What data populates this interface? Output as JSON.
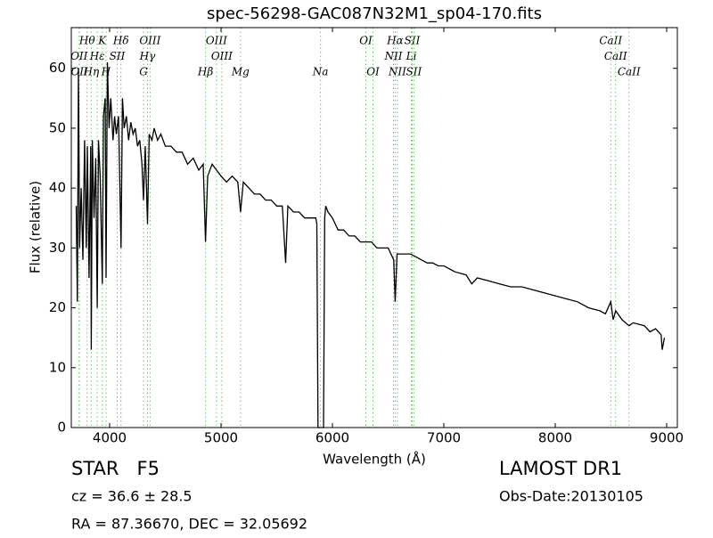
{
  "chart_data": {
    "type": "line",
    "title": "spec-56298-GAC087N32M1_sp04-170.fits",
    "x_label": "Wavelength (Å)",
    "y_label": "Flux (relative)",
    "color": "#000000",
    "line_color": "#66cc66",
    "xlim": [
      3656,
      9096
    ],
    "ylim": [
      0,
      66.8
    ],
    "xticks": [
      4000,
      5000,
      6000,
      7000,
      8000,
      9000
    ],
    "yticks": [
      0,
      10,
      20,
      30,
      40,
      50,
      60
    ],
    "x": [
      3700,
      3710,
      3720,
      3730,
      3745,
      3760,
      3775,
      3790,
      3800,
      3815,
      3830,
      3835,
      3845,
      3860,
      3875,
      3889,
      3900,
      3915,
      3934,
      3945,
      3960,
      3968,
      3980,
      3995,
      4010,
      4030,
      4045,
      4060,
      4080,
      4102,
      4115,
      4130,
      4150,
      4170,
      4190,
      4210,
      4230,
      4250,
      4270,
      4290,
      4304,
      4320,
      4340,
      4355,
      4380,
      4400,
      4430,
      4460,
      4500,
      4550,
      4600,
      4650,
      4700,
      4750,
      4800,
      4840,
      4861,
      4880,
      4920,
      4960,
      5000,
      5050,
      5100,
      5150,
      5175,
      5200,
      5250,
      5300,
      5350,
      5400,
      5450,
      5500,
      5550,
      5580,
      5600,
      5650,
      5700,
      5750,
      5800,
      5850,
      5860,
      5870,
      5920,
      5930,
      5940,
      5960,
      6000,
      6050,
      6100,
      6150,
      6200,
      6250,
      6300,
      6350,
      6400,
      6450,
      6500,
      6550,
      6563,
      6580,
      6650,
      6700,
      6750,
      6800,
      6850,
      6900,
      6950,
      7000,
      7100,
      7200,
      7250,
      7300,
      7400,
      7500,
      7600,
      7700,
      7800,
      7900,
      8000,
      8100,
      8200,
      8300,
      8400,
      8450,
      8498,
      8520,
      8542,
      8600,
      8662,
      8700,
      8800,
      8850,
      8900,
      8950,
      8960,
      8980
    ],
    "values": [
      37,
      21,
      60,
      30,
      40,
      28,
      48,
      30,
      47,
      25,
      47,
      13,
      48,
      35,
      45,
      20,
      48,
      42,
      24,
      52,
      55,
      25,
      61,
      50,
      55,
      48,
      52,
      49,
      52,
      30,
      55,
      50,
      52,
      48,
      51,
      49,
      50,
      47,
      48,
      44,
      38,
      47,
      34,
      49,
      48,
      50,
      48,
      49,
      47,
      47,
      46,
      46,
      44,
      45,
      43,
      44,
      31,
      42,
      44,
      43,
      42,
      41,
      42,
      41,
      36,
      41,
      40,
      39,
      39,
      38,
      38,
      37,
      37,
      27.5,
      37,
      36,
      36,
      35,
      35,
      35,
      34,
      0,
      0,
      35,
      37,
      36,
      35,
      33,
      33,
      32,
      32,
      31,
      31,
      31,
      30,
      30,
      30,
      28,
      21,
      29,
      29,
      29,
      28.5,
      28,
      27.5,
      27.5,
      27,
      27,
      26,
      25.5,
      24,
      25,
      24.5,
      24,
      23.5,
      23.5,
      23,
      22.5,
      22,
      21.5,
      21,
      20,
      19.5,
      19,
      21,
      18,
      19.5,
      18,
      17,
      17.5,
      17,
      16,
      16.5,
      15.5,
      13,
      15
    ],
    "spectral_lines": [
      [
        {
          "label": "Hθ",
          "x": 3798
        },
        {
          "label": "K",
          "x": 3934
        },
        {
          "label": "Hδ",
          "x": 4102
        },
        {
          "label": "OIII",
          "x": 4363
        },
        {
          "label": "OIII",
          "x": 4959
        },
        {
          "label": "OI",
          "x": 6300
        },
        {
          "label": "Hα",
          "x": 6563
        },
        {
          "label": "SII",
          "x": 6716
        },
        {
          "label": "CaII",
          "x": 8498
        }
      ],
      [
        {
          "label": "OII",
          "x": 3726
        },
        {
          "label": "Hε",
          "x": 3889
        },
        {
          "label": "SII",
          "x": 4068
        },
        {
          "label": "Hγ",
          "x": 4340
        },
        {
          "label": "OIII",
          "x": 5007
        },
        {
          "label": "NII",
          "x": 6548
        },
        {
          "label": "Li",
          "x": 6708
        },
        {
          "label": "CaII",
          "x": 8542
        }
      ],
      [
        {
          "label": "OII",
          "x": 3729
        },
        {
          "label": "Hη",
          "x": 3835
        },
        {
          "label": "H",
          "x": 3968
        },
        {
          "label": "G",
          "x": 4304
        },
        {
          "label": "Hβ",
          "x": 4861
        },
        {
          "label": "Mg",
          "x": 5175
        },
        {
          "label": "Na",
          "x": 5893
        },
        {
          "label": "OI",
          "x": 6364
        },
        {
          "label": "NII",
          "x": 6583
        },
        {
          "label": "SII",
          "x": 6731
        },
        {
          "label": "CaII",
          "x": 8662
        }
      ]
    ],
    "annotations": {
      "object": "STAR   F5",
      "redshift": "cz = 36.6 ± 28.5",
      "coords": "RA = 87.36670, DEC = 32.05692",
      "survey": "LAMOST DR1",
      "date": "Obs-Date:20130105"
    }
  }
}
